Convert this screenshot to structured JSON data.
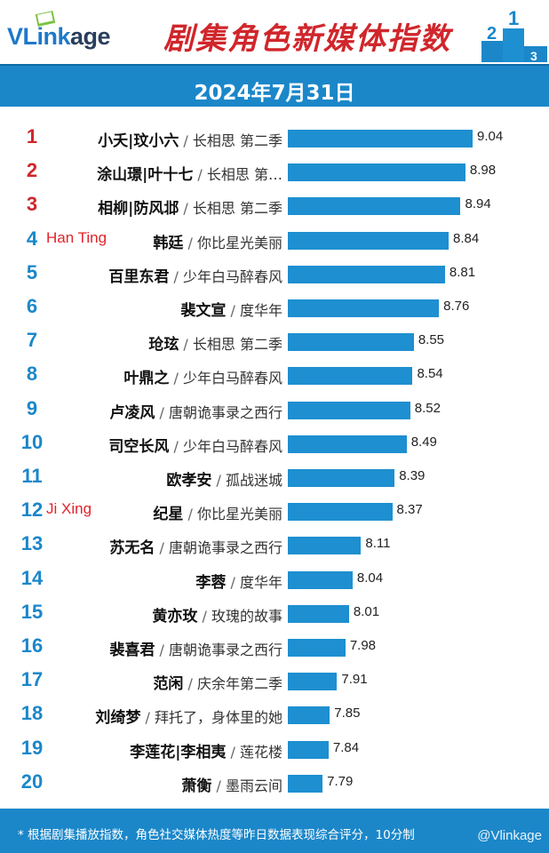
{
  "header": {
    "logo": {
      "v": "V",
      "link": "Link",
      "age": "age"
    },
    "title": "剧集角色新媒体指数",
    "date": "2024年7月31日"
  },
  "colors": {
    "bar": "#1e8fd0",
    "header_bar": "#1b87c9",
    "title": "#d0262b",
    "rank_top3": "#d0262b",
    "rank_rest": "#1b87c9",
    "annotation": "#e0242a"
  },
  "chart_data": {
    "type": "bar",
    "orientation": "horizontal",
    "title": "剧集角色新媒体指数",
    "xlim": [
      0,
      9.04
    ],
    "rows": [
      {
        "rank": "1",
        "character": "小夭|玟小六",
        "show": "长相思 第二季",
        "value": 9.04,
        "annotation": ""
      },
      {
        "rank": "2",
        "character": "涂山璟|叶十七",
        "show": "长相思 第…",
        "value": 8.98,
        "annotation": ""
      },
      {
        "rank": "3",
        "character": "相柳|防风邶",
        "show": "长相思 第二季",
        "value": 8.94,
        "annotation": ""
      },
      {
        "rank": "4",
        "character": "韩廷",
        "show": "你比星光美丽",
        "value": 8.84,
        "annotation": "Han Ting"
      },
      {
        "rank": "5",
        "character": "百里东君",
        "show": "少年白马醉春风",
        "value": 8.81,
        "annotation": ""
      },
      {
        "rank": "6",
        "character": "裴文宣",
        "show": "度华年",
        "value": 8.76,
        "annotation": ""
      },
      {
        "rank": "7",
        "character": "玱玹",
        "show": "长相思 第二季",
        "value": 8.55,
        "annotation": ""
      },
      {
        "rank": "8",
        "character": "叶鼎之",
        "show": "少年白马醉春风",
        "value": 8.54,
        "annotation": ""
      },
      {
        "rank": "9",
        "character": "卢凌风",
        "show": "唐朝诡事录之西行",
        "value": 8.52,
        "annotation": ""
      },
      {
        "rank": "10",
        "character": "司空长风",
        "show": "少年白马醉春风",
        "value": 8.49,
        "annotation": ""
      },
      {
        "rank": "11",
        "character": "欧孝安",
        "show": "孤战迷城",
        "value": 8.39,
        "annotation": ""
      },
      {
        "rank": "12",
        "character": "纪星",
        "show": "你比星光美丽",
        "value": 8.37,
        "annotation": "Ji Xing"
      },
      {
        "rank": "13",
        "character": "苏无名",
        "show": "唐朝诡事录之西行",
        "value": 8.11,
        "annotation": ""
      },
      {
        "rank": "14",
        "character": "李蓉",
        "show": "度华年",
        "value": 8.04,
        "annotation": ""
      },
      {
        "rank": "15",
        "character": "黄亦玫",
        "show": "玫瑰的故事",
        "value": 8.01,
        "annotation": ""
      },
      {
        "rank": "16",
        "character": "裴喜君",
        "show": "唐朝诡事录之西行",
        "value": 7.98,
        "annotation": ""
      },
      {
        "rank": "17",
        "character": "范闲",
        "show": "庆余年第二季",
        "value": 7.91,
        "annotation": ""
      },
      {
        "rank": "18",
        "character": "刘绮梦",
        "show": "拜托了，身体里的她",
        "value": 7.85,
        "annotation": ""
      },
      {
        "rank": "19",
        "character": "李莲花|李相夷",
        "show": "莲花楼",
        "value": 7.84,
        "annotation": ""
      },
      {
        "rank": "20",
        "character": "萧衡",
        "show": "墨雨云间",
        "value": 7.79,
        "annotation": ""
      }
    ]
  },
  "footer": {
    "note": "* 根据剧集播放指数，角色社交媒体热度等昨日数据表现综合评分，10分制",
    "watermark": "@Vlinkage"
  }
}
